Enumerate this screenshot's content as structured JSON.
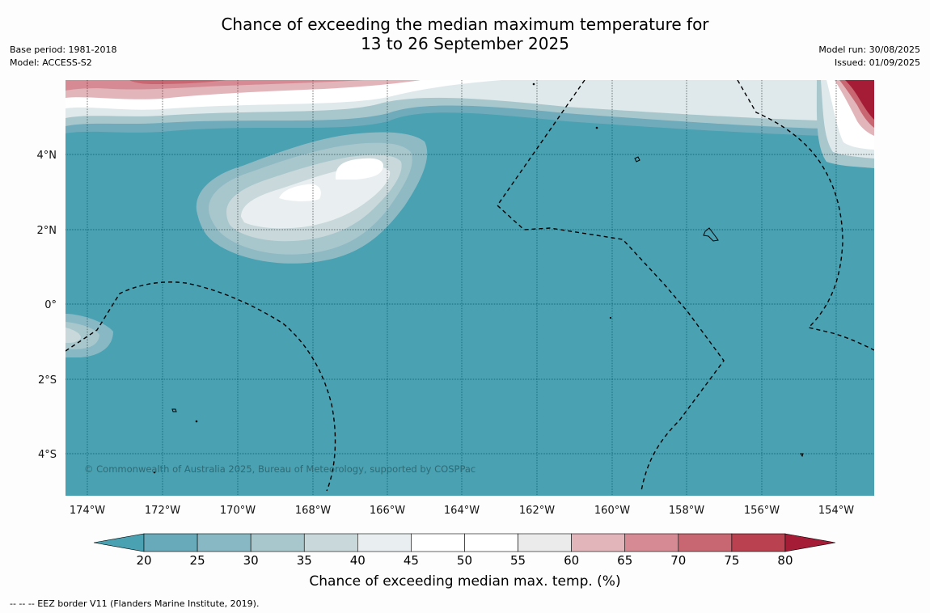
{
  "title_line1": "Chance of exceeding the median maximum temperature for",
  "title_line2": "13 to 26 September 2025",
  "base_period": "Base period: 1981-2018",
  "model": "Model: ACCESS-S2",
  "model_run": "Model run: 30/08/2025",
  "issued": "Issued: 01/09/2025",
  "copyright": "© Commonwealth of Australia 2025, Bureau of Meteorology, supported by COSPPac",
  "lon_labels": [
    "174°W",
    "172°W",
    "170°W",
    "168°W",
    "166°W",
    "164°W",
    "162°W",
    "160°W",
    "158°W",
    "156°W",
    "154°W"
  ],
  "lat_labels": [
    "4°N",
    "2°N",
    "0°",
    "2°S",
    "4°S"
  ],
  "colorbar": {
    "ticks": [
      "20",
      "25",
      "30",
      "35",
      "40",
      "45",
      "50",
      "55",
      "60",
      "65",
      "70",
      "75",
      "80"
    ],
    "colors": [
      "#4aa1b1",
      "#68aab9",
      "#88b8c3",
      "#a8c7cd",
      "#c9d8db",
      "#e9eff0",
      "#ffffff",
      "#ffffff",
      "#ebebeb",
      "#e2b5bb",
      "#d68b94",
      "#c86671",
      "#b94150",
      "#a51c36"
    ],
    "label": "Chance of exceeding median max. temp. (%)"
  },
  "footer": "--  --  -- EEZ border V11 (Flanders Marine Institute, 2019)."
}
